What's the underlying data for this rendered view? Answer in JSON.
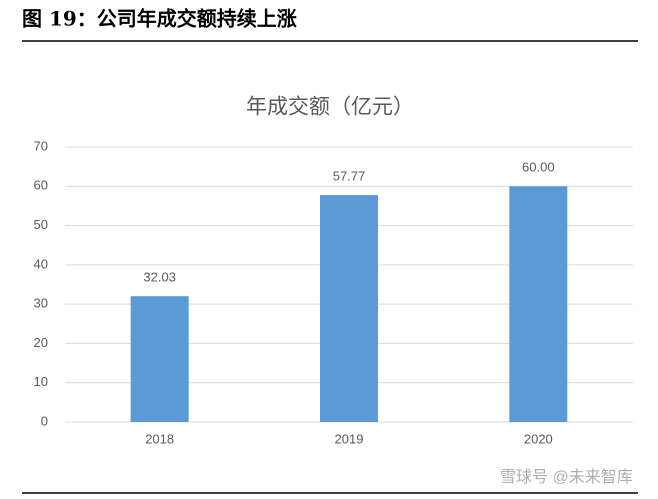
{
  "figure_title": "图 19：公司年成交额持续上涨",
  "watermark": "雪球号 @未来智库",
  "chart_data": {
    "type": "bar",
    "title": "年成交额（亿元）",
    "categories": [
      "2018",
      "2019",
      "2020"
    ],
    "values": [
      32.03,
      57.77,
      60
    ],
    "value_labels": [
      "32.03",
      "57.77",
      "60.00"
    ],
    "color": "#5b9bd5",
    "ylim": [
      0,
      70
    ],
    "yticks": [
      0,
      10,
      20,
      30,
      40,
      50,
      60,
      70
    ],
    "grid": true
  }
}
